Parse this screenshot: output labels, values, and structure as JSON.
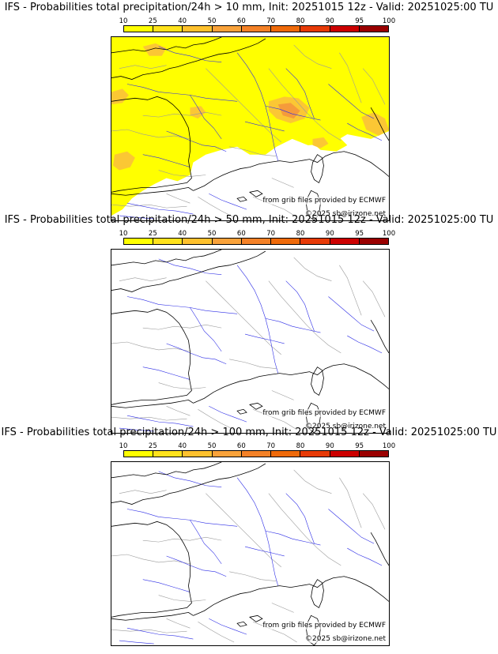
{
  "colorscale": {
    "ticks": [
      "10",
      "25",
      "40",
      "50",
      "60",
      "70",
      "80",
      "90",
      "95",
      "100"
    ],
    "colors": [
      "#ffff00",
      "#ffe21c",
      "#fec12e",
      "#f9a23a",
      "#f48127",
      "#ef6a0a",
      "#e73a07",
      "#cc0000",
      "#9a0000",
      "#6a0000"
    ]
  },
  "credits": {
    "source": "from grib files provided by ECMWF",
    "copyright": "©2025 sb@irizone.net"
  },
  "colors": {
    "coast": "#000000",
    "rivers": "#2d2de6",
    "borders": "#9a9a9a",
    "prob_light": "#ffff00",
    "prob_medium": "#fbc734",
    "prob_high": "#f59b3b"
  },
  "panels": [
    {
      "title": "IFS - Probabilities total precipitation/24h > 10 mm, Init: 20251015 12z - Valid: 20251025:00 TU",
      "threshold_mm": 10,
      "has_precip": true
    },
    {
      "title": "IFS - Probabilities total precipitation/24h > 50 mm, Init: 20251015 12z - Valid: 20251025:00 TU",
      "threshold_mm": 50,
      "has_precip": false
    },
    {
      "title": "IFS - Probabilities total precipitation/24h > 100 mm, Init: 20251015 12z - Valid: 20251025:00 TU",
      "threshold_mm": 100,
      "has_precip": false
    }
  ]
}
